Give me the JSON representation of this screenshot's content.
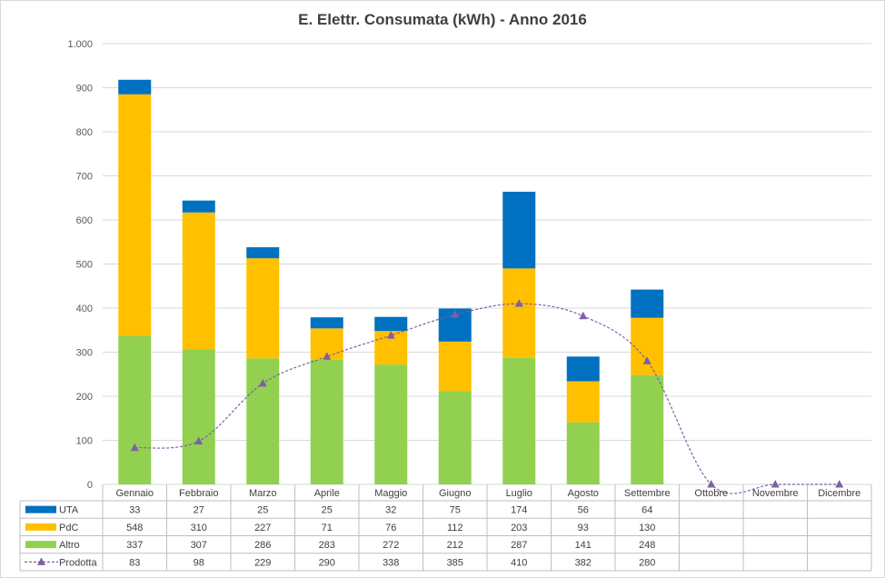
{
  "chart_data": {
    "type": "bar",
    "stacked": true,
    "title": "E. Elettr. Consumata (kWh) - Anno 2016",
    "categories": [
      "Gennaio",
      "Febbraio",
      "Marzo",
      "Aprile",
      "Maggio",
      "Giugno",
      "Luglio",
      "Agosto",
      "Settembre",
      "Ottobre",
      "Novembre",
      "Dicembre"
    ],
    "ylim": [
      0,
      1000
    ],
    "yticks": [
      0,
      100,
      200,
      300,
      400,
      500,
      600,
      700,
      800,
      900,
      1000
    ],
    "ytick_labels": [
      "0",
      "100",
      "200",
      "300",
      "400",
      "500",
      "600",
      "700",
      "800",
      "900",
      "1.000"
    ],
    "grid": true,
    "legend": "data table",
    "series": [
      {
        "name": "UTA",
        "kind": "bar",
        "color": "#0070c0",
        "values": [
          33,
          27,
          25,
          25,
          32,
          75,
          174,
          56,
          64,
          null,
          null,
          null
        ]
      },
      {
        "name": "PdC",
        "kind": "bar",
        "color": "#ffc000",
        "values": [
          548,
          310,
          227,
          71,
          76,
          112,
          203,
          93,
          130,
          null,
          null,
          null
        ]
      },
      {
        "name": "Altro",
        "kind": "bar",
        "color": "#92d050",
        "values": [
          337,
          307,
          286,
          283,
          272,
          212,
          287,
          141,
          248,
          null,
          null,
          null
        ]
      },
      {
        "name": "Prodotta",
        "kind": "line",
        "color": "#7f5fa8",
        "marker": "triangle",
        "dashed": true,
        "smooth": true,
        "values": [
          83,
          98,
          229,
          290,
          338,
          385,
          410,
          382,
          280,
          0,
          0,
          0
        ]
      }
    ],
    "table_values": [
      [
        "33",
        "27",
        "25",
        "25",
        "32",
        "75",
        "174",
        "56",
        "64",
        "",
        "",
        ""
      ],
      [
        "548",
        "310",
        "227",
        "71",
        "76",
        "112",
        "203",
        "93",
        "130",
        "",
        "",
        ""
      ],
      [
        "337",
        "307",
        "286",
        "283",
        "272",
        "212",
        "287",
        "141",
        "248",
        "",
        "",
        ""
      ],
      [
        "83",
        "98",
        "229",
        "290",
        "338",
        "385",
        "410",
        "382",
        "280",
        "",
        "",
        ""
      ]
    ]
  }
}
